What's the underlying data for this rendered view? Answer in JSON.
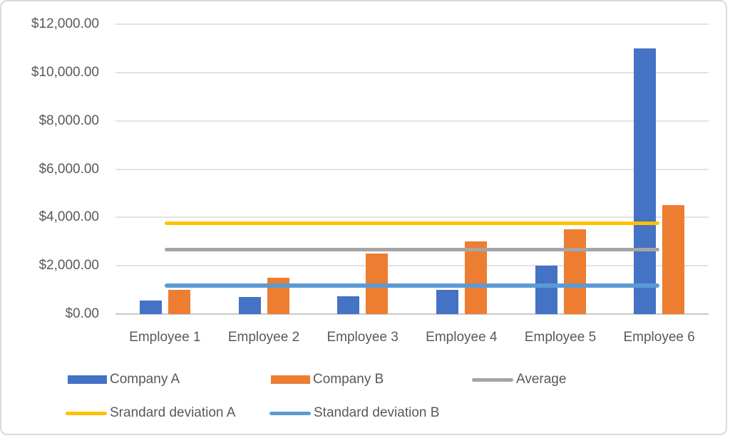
{
  "chart_data": {
    "type": "bar",
    "title": "",
    "categories": [
      "Employee 1",
      "Employee 2",
      "Employee 3",
      "Employee 4",
      "Employee 5",
      "Employee 6"
    ],
    "series": [
      {
        "name": "Company A",
        "kind": "bar",
        "color": "#4472C4",
        "values": [
          550,
          700,
          750,
          1000,
          2000,
          11000
        ]
      },
      {
        "name": "Company B",
        "kind": "bar",
        "color": "#ED7D31",
        "values": [
          1000,
          1500,
          2500,
          3000,
          3500,
          4500
        ]
      },
      {
        "name": "Average",
        "kind": "line",
        "color": "#A5A5A5",
        "thickness": 5,
        "value": 2666.67
      },
      {
        "name": "Srandard deviation A",
        "kind": "line",
        "color": "#FFC000",
        "thickness": 5,
        "value": 3757.16
      },
      {
        "name": "Standard deviation B",
        "kind": "line",
        "color": "#5B9BD5",
        "thickness": 6,
        "value": 1178.51
      }
    ],
    "y_axis": {
      "min": 0,
      "max": 12000,
      "step": 2000,
      "tick_labels_top_down": [
        "$12,000.00",
        "$10,000.00",
        "$8,000.00",
        "$6,000.00",
        "$4,000.00",
        "$2,000.00",
        "$0.00"
      ]
    },
    "x_axis": {
      "label": ""
    },
    "grid": true,
    "legend_position": "bottom",
    "legend": {
      "items": [
        {
          "label": "Company A",
          "swatch": "rect",
          "series": 0
        },
        {
          "label": "Company B",
          "swatch": "rect",
          "series": 1
        },
        {
          "label": "Average",
          "swatch": "line",
          "series": 2
        },
        {
          "label": "Srandard deviation A",
          "swatch": "line",
          "series": 3
        },
        {
          "label": "Standard deviation B",
          "swatch": "line",
          "series": 4
        }
      ]
    },
    "colors": {
      "axis_text": "#595959",
      "gridline": "#e3e3e3",
      "axis_line": "#c9c9c9",
      "background": "#ffffff",
      "border": "#d9d9d9"
    }
  }
}
